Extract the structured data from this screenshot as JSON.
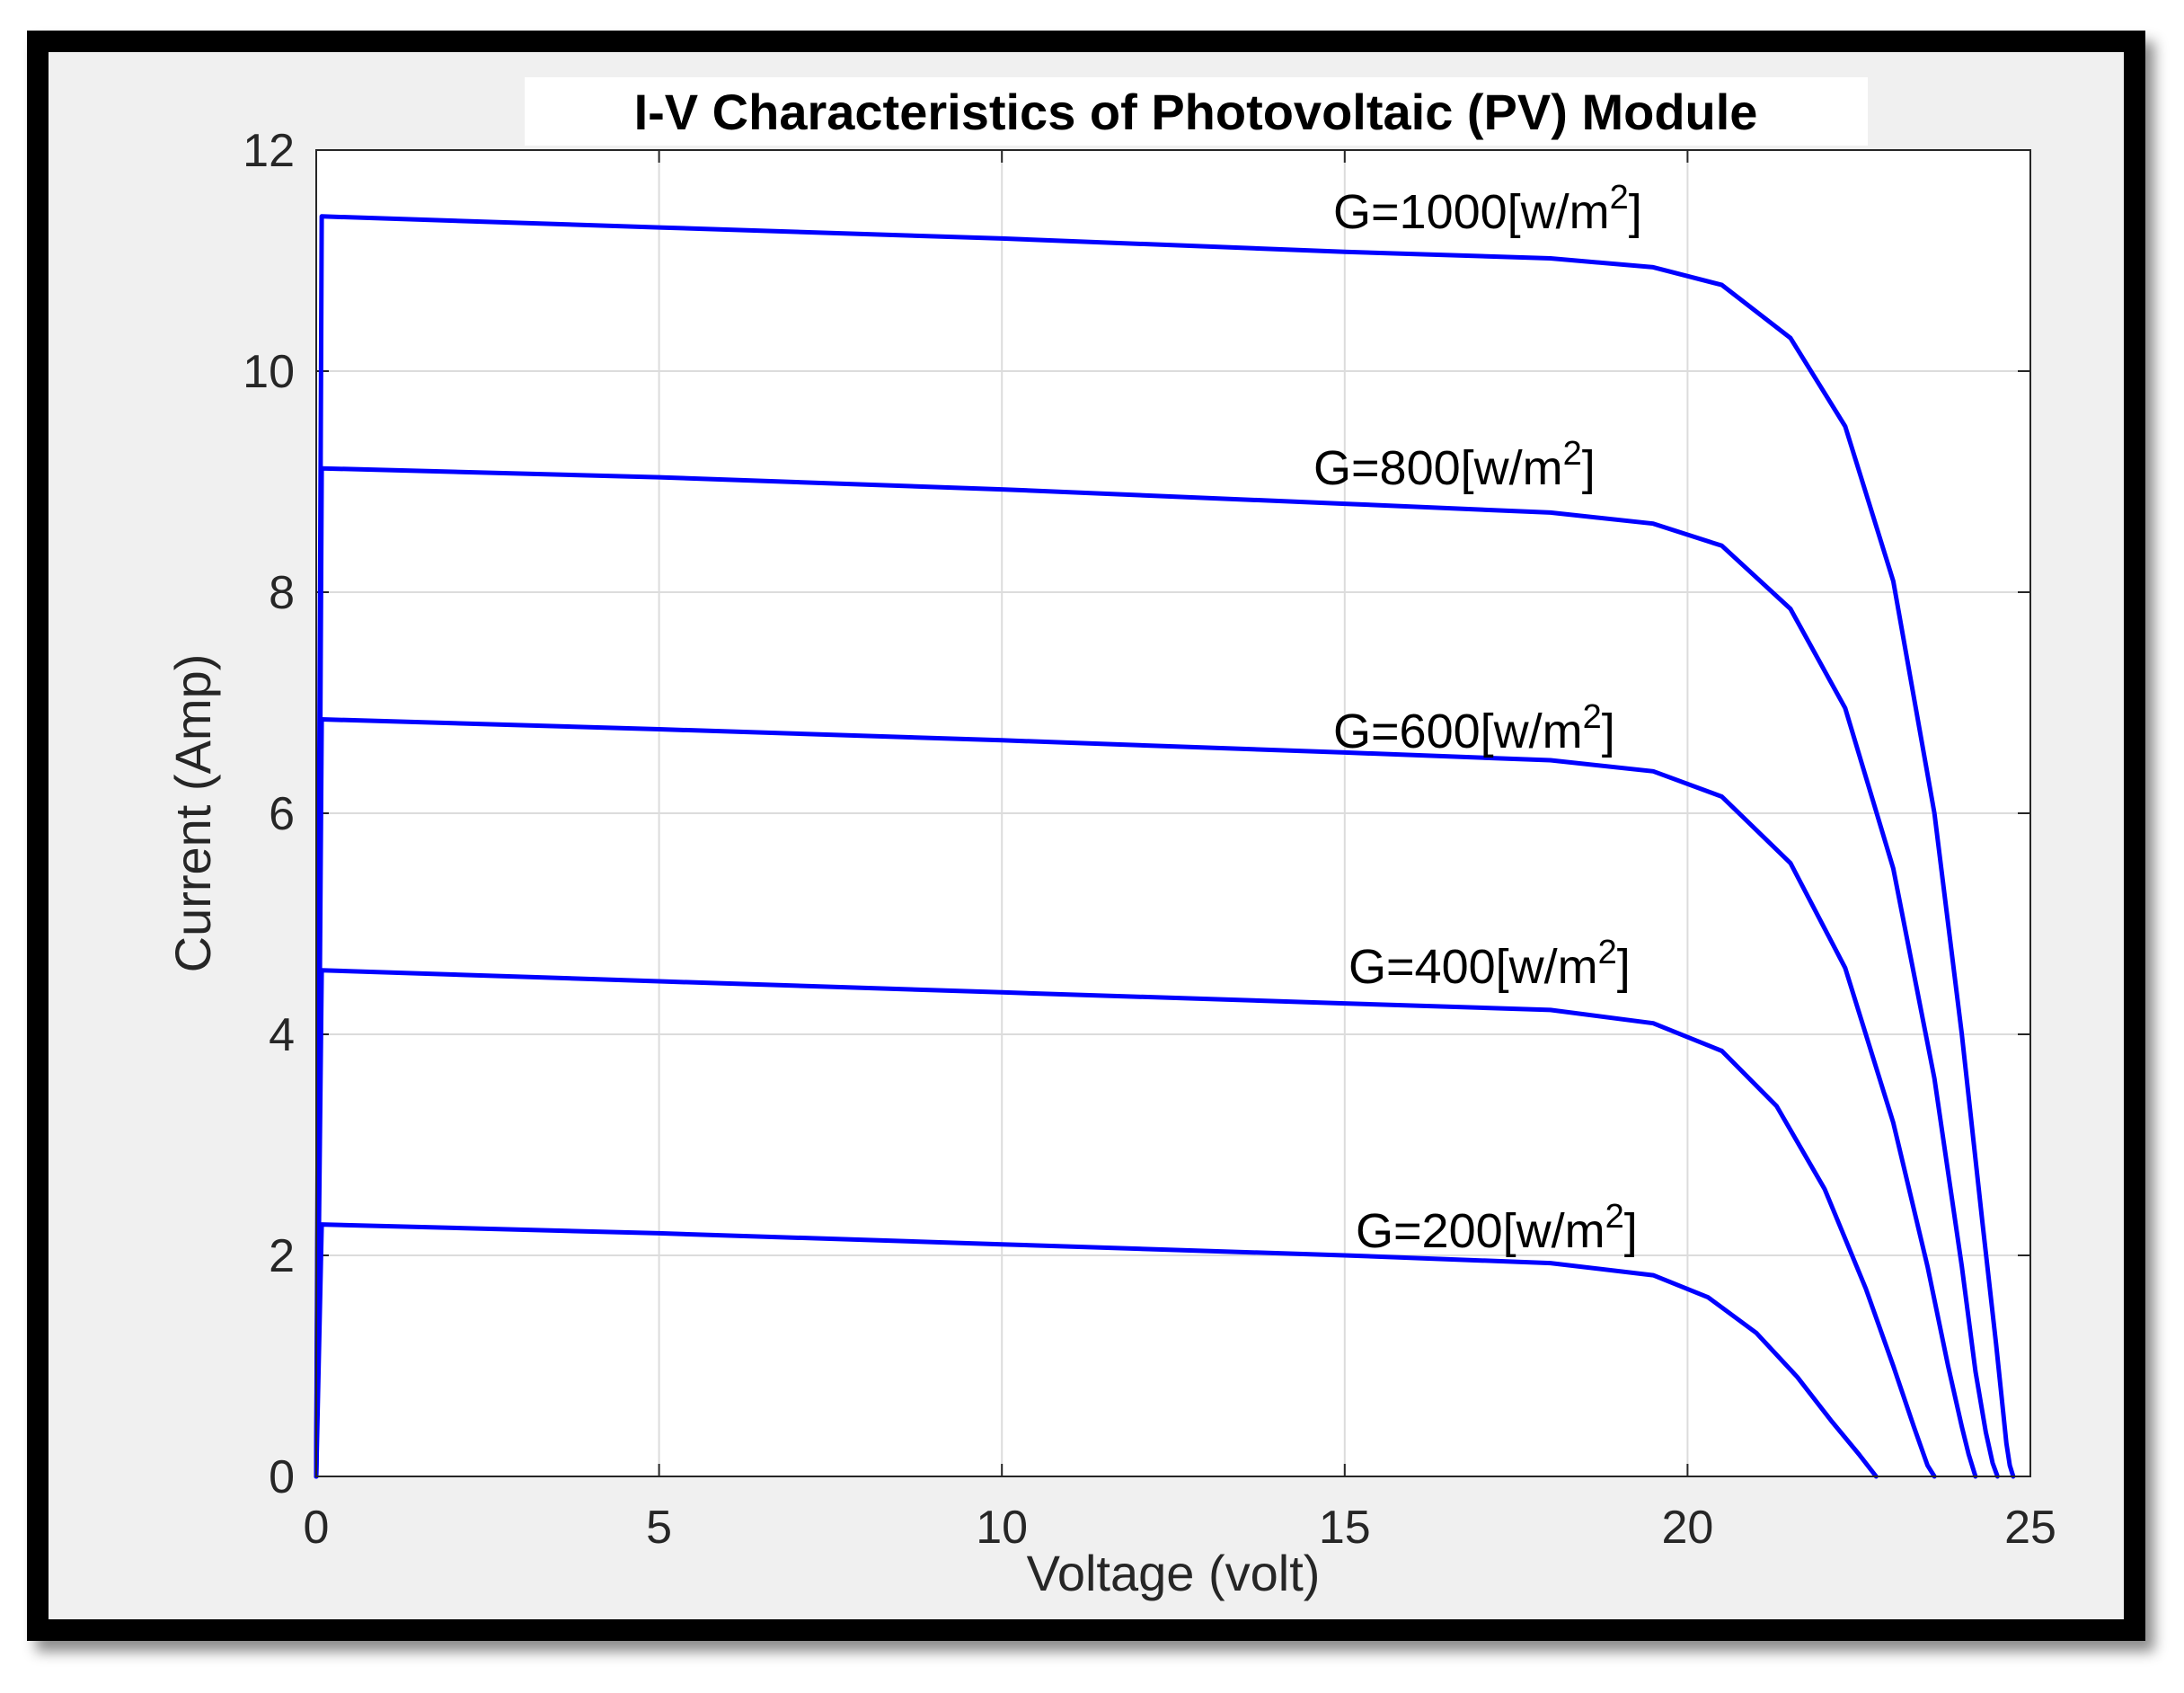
{
  "chart_data": {
    "type": "line",
    "title": "I-V Characteristics of Photovoltaic (PV) Module",
    "xlabel": "Voltage (volt)",
    "ylabel": "Current (Amp)",
    "xlim": [
      0,
      25
    ],
    "ylim": [
      0,
      12
    ],
    "xticks": [
      "0",
      "5",
      "10",
      "15",
      "20",
      "25"
    ],
    "yticks": [
      "0",
      "2",
      "4",
      "6",
      "8",
      "10",
      "12"
    ],
    "grid": true,
    "line_color": "#0000ff",
    "series": [
      {
        "name": "G=1000",
        "label": "G=1000[w/m",
        "sup": "2",
        "close": "]",
        "x": [
          0,
          0.08,
          5,
          10,
          15,
          18,
          19.5,
          20.5,
          21.5,
          22.3,
          23,
          23.6,
          24.0,
          24.3,
          24.5,
          24.6,
          24.65,
          24.7,
          24.75
        ],
        "y": [
          0,
          11.4,
          11.3,
          11.2,
          11.08,
          11.02,
          10.94,
          10.78,
          10.3,
          9.5,
          8.1,
          6.0,
          4.0,
          2.3,
          1.2,
          0.6,
          0.3,
          0.1,
          0
        ]
      },
      {
        "name": "G=800",
        "label": "G=800[w/m",
        "sup": "2",
        "close": "]",
        "x": [
          0,
          0.08,
          5,
          10,
          15,
          18,
          19.5,
          20.5,
          21.5,
          22.3,
          23,
          23.6,
          24.0,
          24.2,
          24.35,
          24.45,
          24.52
        ],
        "y": [
          0,
          9.12,
          9.04,
          8.93,
          8.8,
          8.72,
          8.62,
          8.42,
          7.85,
          6.95,
          5.5,
          3.6,
          1.9,
          0.95,
          0.4,
          0.12,
          0
        ]
      },
      {
        "name": "G=600",
        "label": "G=600[w/m",
        "sup": "2",
        "close": "]",
        "x": [
          0,
          0.08,
          5,
          10,
          15,
          18,
          19.5,
          20.5,
          21.5,
          22.3,
          23,
          23.5,
          23.8,
          24.0,
          24.1,
          24.2
        ],
        "y": [
          0,
          6.85,
          6.76,
          6.66,
          6.55,
          6.48,
          6.38,
          6.15,
          5.55,
          4.6,
          3.2,
          1.9,
          1.0,
          0.45,
          0.2,
          0
        ]
      },
      {
        "name": "G=400",
        "label": "G=400[w/m",
        "sup": "2",
        "close": "]",
        "x": [
          0,
          0.08,
          5,
          10,
          15,
          18,
          19.5,
          20.5,
          21.3,
          22.0,
          22.6,
          23.0,
          23.3,
          23.5,
          23.6
        ],
        "y": [
          0,
          4.58,
          4.48,
          4.38,
          4.28,
          4.22,
          4.1,
          3.85,
          3.35,
          2.6,
          1.7,
          1.0,
          0.45,
          0.1,
          0
        ]
      },
      {
        "name": "G=200",
        "label": "G=200[w/m",
        "sup": "2",
        "close": "]",
        "x": [
          0,
          0.08,
          5,
          10,
          15,
          18,
          19.5,
          20.3,
          21.0,
          21.6,
          22.1,
          22.5,
          22.75
        ],
        "y": [
          0,
          2.28,
          2.2,
          2.1,
          2.0,
          1.93,
          1.82,
          1.62,
          1.3,
          0.9,
          0.5,
          0.2,
          0
        ]
      }
    ]
  }
}
